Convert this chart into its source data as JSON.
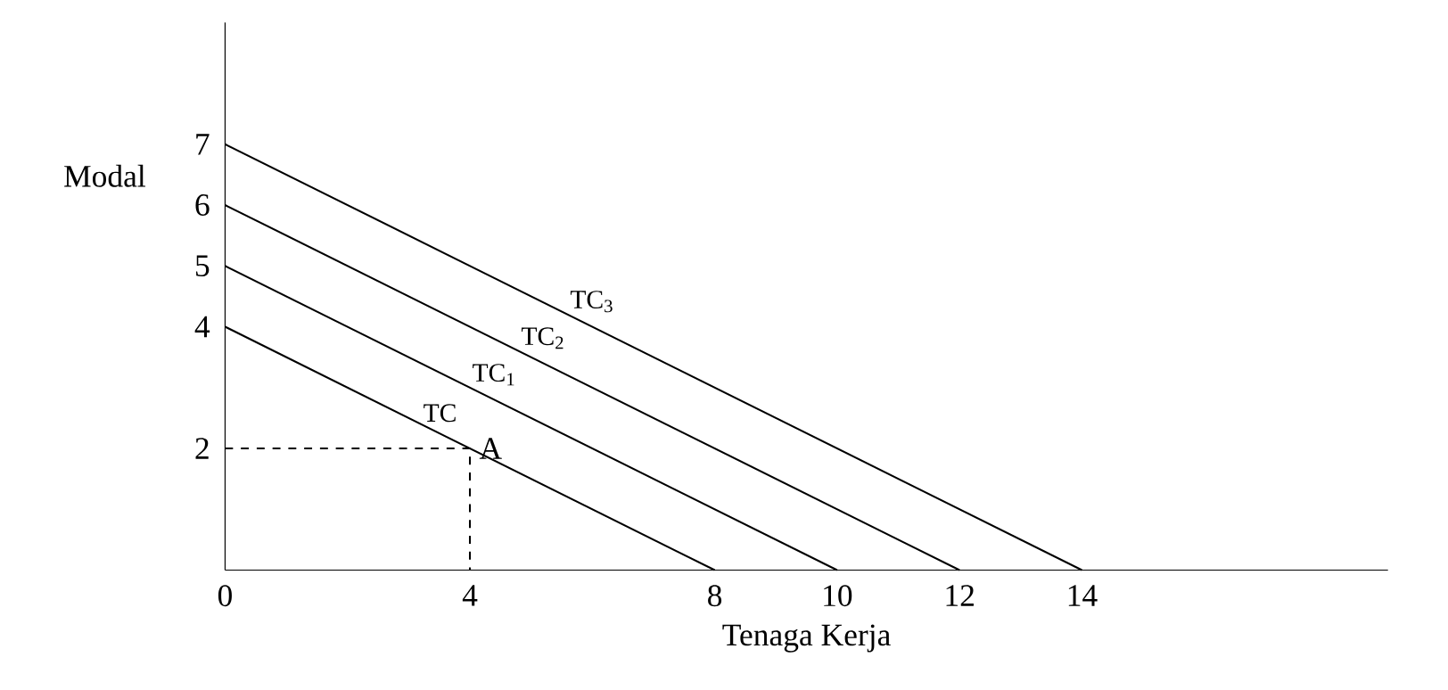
{
  "chart_data": {
    "type": "line",
    "xlabel": "Tenaga Kerja",
    "ylabel": "Modal",
    "xlim": [
      0,
      19
    ],
    "ylim": [
      0,
      9
    ],
    "xticks": [
      0,
      4,
      8,
      10,
      12,
      14
    ],
    "yticks": [
      2,
      4,
      5,
      6,
      7
    ],
    "grid": false,
    "legend": false,
    "marker": "none",
    "series": [
      {
        "name": "TC",
        "color": "#000000",
        "x": [
          0,
          8
        ],
        "values": [
          4,
          0
        ]
      },
      {
        "name": "TC$_{1}$",
        "color": "#000000",
        "x": [
          0,
          10
        ],
        "values": [
          5,
          0
        ]
      },
      {
        "name": "TC$_{2}$",
        "color": "#000000",
        "x": [
          0,
          12
        ],
        "values": [
          6,
          0
        ]
      },
      {
        "name": "TC$_{3}$",
        "color": "#000000",
        "x": [
          0,
          14
        ],
        "values": [
          7,
          0
        ]
      },
      {
        "color": "#000000",
        "line_style": "dashed",
        "x": [
          0,
          4,
          4
        ],
        "values": [
          2,
          2,
          0
        ]
      }
    ],
    "annotations": [
      {
        "text": "A",
        "x": 4,
        "y": 2
      }
    ]
  }
}
